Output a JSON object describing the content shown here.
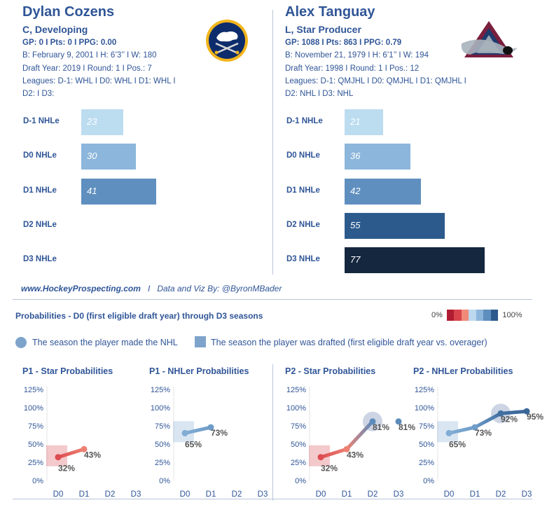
{
  "player1": {
    "name": "Dylan Cozens",
    "type": "C, Developing",
    "stats": "GP: 0 I Pts: 0 I PPG: 0.00",
    "bio": "B: February 9, 2001 I H: 6’3’’ I W: 180",
    "draft": "Draft Year: 2019 I Round: 1 I Pos.: 7",
    "leagues": "Leagues: D-1: WHL I D0: WHL I D1: WHL I",
    "leagues2": "D2:  I D3:",
    "logo": "buffalo-sabres-logo",
    "nhle": [
      {
        "label": "D-1 NHLe",
        "value": 23,
        "color": "#bcdcf0"
      },
      {
        "label": "D0 NHLe",
        "value": 30,
        "color": "#8cb6db"
      },
      {
        "label": "D1 NHLe",
        "value": 41,
        "color": "#5f8fbf"
      },
      {
        "label": "D2 NHLe",
        "value": null,
        "color": "#2d5a8c"
      },
      {
        "label": "D3 NHLe",
        "value": null,
        "color": "#15273f"
      }
    ]
  },
  "player2": {
    "name": "Alex Tanguay",
    "type": "L, Star Producer",
    "stats": "GP: 1088 I Pts: 863 I PPG: 0.79",
    "bio": "B: November 21, 1979 I H: 6’1’’ I W: 194",
    "draft": "Draft Year: 1998 I Round: 1 I Pos.: 12",
    "leagues": "Leagues: D-1: QMJHL I D0: QMJHL I D1: QMJHL I",
    "leagues2": "D2: NHL I D3: NHL",
    "logo": "colorado-avalanche-logo",
    "nhle": [
      {
        "label": "D-1 NHLe",
        "value": 21,
        "color": "#bcdcf0"
      },
      {
        "label": "D0 NHLe",
        "value": 36,
        "color": "#8cb6db"
      },
      {
        "label": "D1 NHLe",
        "value": 42,
        "color": "#5f8fbf"
      },
      {
        "label": "D2 NHLe",
        "value": 55,
        "color": "#2d5a8c"
      },
      {
        "label": "D3 NHLe",
        "value": 77,
        "color": "#15273f"
      }
    ]
  },
  "credit": {
    "site": "www.HockeyProspecting.com",
    "sep": "I",
    "byline": "Data and Viz By: @ByronMBader"
  },
  "probabilities": {
    "title": "Probabilities - D0 (first eligible draft year) through D3 seasons",
    "scale_min": "0%",
    "scale_max": "100%",
    "scale_colors": [
      "#b01c32",
      "#d9434c",
      "#f08a78",
      "#bcd8ee",
      "#8cb6db",
      "#5f8fbf",
      "#2d5a8c"
    ],
    "legend_nhl": "The season the player made the NHL",
    "legend_drafted": "The season the player was drafted (first eligible draft year vs. overager)"
  },
  "chart_data": [
    {
      "type": "line",
      "title": "P1 - Star Probabilities",
      "categories": [
        "D0",
        "D1",
        "D2",
        "D3"
      ],
      "values": [
        32,
        43,
        null,
        null
      ],
      "labels": [
        "32%",
        "43%",
        null,
        null
      ],
      "ytick_labels": [
        "125%",
        "100%",
        "75%",
        "50%",
        "25%",
        "0%"
      ],
      "ylim": [
        0,
        125
      ],
      "drafted_index": 0,
      "nhl_index": null
    },
    {
      "type": "line",
      "title": "P1 - NHLer Probabilities",
      "categories": [
        "D0",
        "D1",
        "D2",
        "D3"
      ],
      "values": [
        65,
        73,
        null,
        null
      ],
      "labels": [
        "65%",
        "73%",
        null,
        null
      ],
      "ytick_labels": [
        "125%",
        "100%",
        "75%",
        "50%",
        "25%",
        "0%"
      ],
      "ylim": [
        0,
        125
      ],
      "drafted_index": 0,
      "nhl_index": null
    },
    {
      "type": "line",
      "title": "P2 - Star Probabilities",
      "categories": [
        "D0",
        "D1",
        "D2",
        "D3"
      ],
      "values": [
        32,
        43,
        81,
        81
      ],
      "labels": [
        "32%",
        "43%",
        "81%",
        "81%"
      ],
      "ytick_labels": [
        "125%",
        "100%",
        "75%",
        "50%",
        "25%",
        "0%"
      ],
      "ylim": [
        0,
        125
      ],
      "drafted_index": 0,
      "nhl_index": 2
    },
    {
      "type": "line",
      "title": "P2 - NHLer Probabilities",
      "categories": [
        "D0",
        "D1",
        "D2",
        "D3"
      ],
      "values": [
        65,
        73,
        92,
        95
      ],
      "labels": [
        "65%",
        "73%",
        "92%",
        "95%"
      ],
      "ytick_labels": [
        "125%",
        "100%",
        "75%",
        "50%",
        "25%",
        "0%"
      ],
      "ylim": [
        0,
        125
      ],
      "drafted_index": 0,
      "nhl_index": 2
    }
  ]
}
